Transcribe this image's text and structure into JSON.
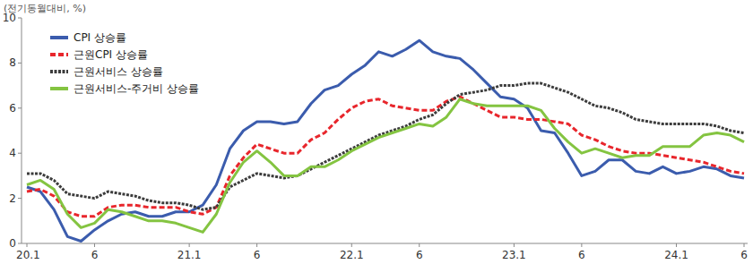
{
  "chart_data": {
    "type": "line",
    "y_label": "(전기동월대비, %)",
    "categories": [
      "20.1",
      null,
      null,
      null,
      null,
      "6",
      null,
      null,
      null,
      null,
      null,
      null,
      "21.1",
      null,
      null,
      null,
      null,
      "6",
      null,
      null,
      null,
      null,
      null,
      null,
      "22.1",
      null,
      null,
      null,
      null,
      "6",
      null,
      null,
      null,
      null,
      null,
      null,
      "23.1",
      null,
      null,
      null,
      null,
      "6",
      null,
      null,
      null,
      null,
      null,
      null,
      "24.1",
      null,
      null,
      null,
      null,
      "6"
    ],
    "ylim": [
      0,
      10
    ],
    "yticks": [
      0,
      2,
      4,
      6,
      8,
      10
    ],
    "grid": false,
    "legend": "top-left",
    "series": [
      {
        "name": "CPI 상승률",
        "color": "#3b5cad",
        "line_style": "solid",
        "values": [
          2.5,
          2.3,
          1.5,
          0.3,
          0.1,
          0.6,
          1.0,
          1.3,
          1.4,
          1.2,
          1.2,
          1.4,
          1.4,
          1.7,
          2.6,
          4.2,
          5.0,
          5.4,
          5.4,
          5.3,
          5.4,
          6.2,
          6.8,
          7.0,
          7.5,
          7.9,
          8.5,
          8.3,
          8.6,
          9.0,
          8.5,
          8.3,
          8.2,
          7.7,
          7.1,
          6.5,
          6.4,
          6.0,
          5.0,
          4.9,
          4.0,
          3.0,
          3.2,
          3.7,
          3.7,
          3.2,
          3.1,
          3.4,
          3.1,
          3.2,
          3.4,
          3.3,
          3.0,
          2.9
        ]
      },
      {
        "name": "근원CPI 상승률",
        "color": "#e8262c",
        "line_style": "dashed",
        "values": [
          2.3,
          2.4,
          2.1,
          1.4,
          1.2,
          1.2,
          1.6,
          1.7,
          1.7,
          1.6,
          1.6,
          1.6,
          1.4,
          1.3,
          1.6,
          3.0,
          3.8,
          4.4,
          4.2,
          4.0,
          4.0,
          4.6,
          4.9,
          5.5,
          6.0,
          6.3,
          6.4,
          6.1,
          6.0,
          5.9,
          5.9,
          6.3,
          6.5,
          6.2,
          5.9,
          5.6,
          5.6,
          5.5,
          5.5,
          5.4,
          5.3,
          4.8,
          4.6,
          4.3,
          4.1,
          4.0,
          4.0,
          3.9,
          3.8,
          3.7,
          3.6,
          3.4,
          3.2,
          3.1
        ]
      },
      {
        "name": "근원서비스 상승률",
        "color": "#3c3c3c",
        "line_style": "dotted",
        "values": [
          3.1,
          3.1,
          2.8,
          2.2,
          2.1,
          2.0,
          2.3,
          2.2,
          2.1,
          1.9,
          1.8,
          1.8,
          1.7,
          1.5,
          1.6,
          2.5,
          2.8,
          3.1,
          3.0,
          2.9,
          3.0,
          3.3,
          3.6,
          3.9,
          4.2,
          4.5,
          4.8,
          5.0,
          5.2,
          5.5,
          5.7,
          6.2,
          6.6,
          6.7,
          6.8,
          7.0,
          7.0,
          7.1,
          7.1,
          6.9,
          6.7,
          6.4,
          6.1,
          6.0,
          5.8,
          5.5,
          5.4,
          5.3,
          5.3,
          5.3,
          5.3,
          5.2,
          5.0,
          4.9
        ]
      },
      {
        "name": "근원서비스-주거비 상승률",
        "color": "#84c441",
        "line_style": "solid",
        "values": [
          2.6,
          2.8,
          2.4,
          1.3,
          0.7,
          0.9,
          1.5,
          1.4,
          1.2,
          1.0,
          1.0,
          0.9,
          0.7,
          0.5,
          1.3,
          2.7,
          3.6,
          4.1,
          3.6,
          3.0,
          3.0,
          3.4,
          3.4,
          3.7,
          4.1,
          4.4,
          4.7,
          4.9,
          5.1,
          5.3,
          5.2,
          5.6,
          6.4,
          6.2,
          6.1,
          6.1,
          6.1,
          6.1,
          5.9,
          5.1,
          4.5,
          4.0,
          4.2,
          4.0,
          3.8,
          3.9,
          3.9,
          4.3,
          4.3,
          4.3,
          4.8,
          4.9,
          4.8,
          4.5
        ]
      }
    ]
  }
}
